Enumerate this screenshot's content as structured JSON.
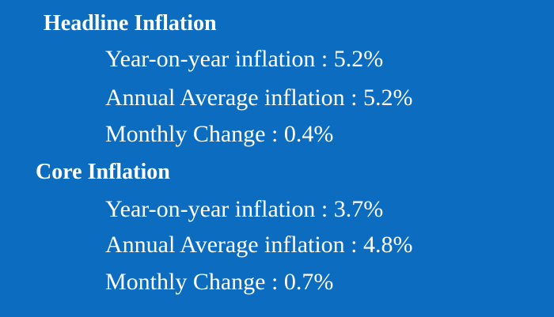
{
  "sections": [
    {
      "title": "Headline Inflation",
      "items": [
        "Year-on-year inflation : 5.2%",
        "Annual Average inflation : 5.2%",
        "Monthly Change : 0.4%"
      ]
    },
    {
      "title": "Core Inflation",
      "items": [
        "Year-on-year inflation : 3.7%",
        "Annual Average inflation : 4.8%",
        "Monthly Change : 0.7%"
      ]
    }
  ]
}
